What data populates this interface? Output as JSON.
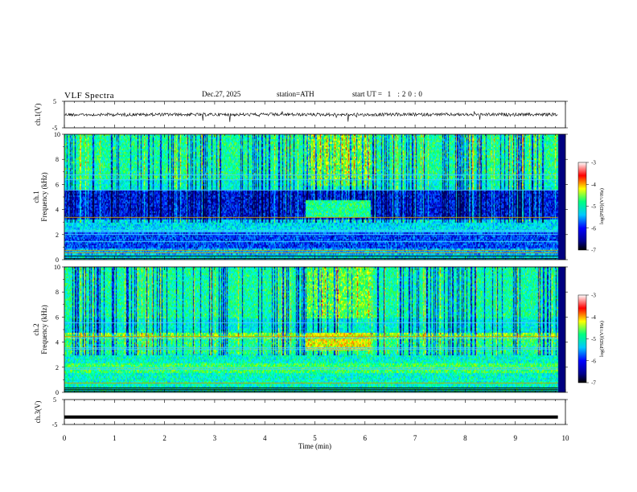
{
  "header": {
    "title": "VLF Spectra",
    "date": "Dec.27, 2025",
    "station": "station=ATH",
    "start_label": "start UT =",
    "start_time": "1 :20:0"
  },
  "chart_data": [
    {
      "type": "line",
      "id": "ch1-waveform",
      "ylabel": "ch.1(V)",
      "ylim": [
        -5,
        5
      ],
      "yticks": [
        "5",
        "-5"
      ],
      "baseline": 0,
      "x_range_min": [
        0,
        9.85
      ]
    },
    {
      "type": "heatmap",
      "id": "ch1-spectrogram",
      "ylabel": "ch.1 Frequency (kHz)",
      "ylim": [
        0,
        10
      ],
      "yticks": [
        "0",
        "2",
        "4",
        "6",
        "8",
        "10"
      ],
      "colorbar_label": "log(PSD)(V²/Hz)",
      "colorbar_range": [
        -7,
        -3
      ],
      "colorbar_ticks": [
        "-3",
        "-4",
        "-5",
        "-6",
        "-7"
      ],
      "features": [
        {
          "label": "enhanced band",
          "x_range": [
            4.8,
            6.1
          ],
          "y_range": [
            3.6,
            4.4
          ]
        }
      ]
    },
    {
      "type": "heatmap",
      "id": "ch2-spectrogram",
      "ylabel": "ch.2 Frequency (kHz)",
      "ylim": [
        0,
        10
      ],
      "yticks": [
        "0",
        "2",
        "4",
        "6",
        "8",
        "10"
      ],
      "colorbar_label": "log(PSD)(V²/Hz)",
      "colorbar_range": [
        -7,
        -3
      ],
      "colorbar_ticks": [
        "-3",
        "-4",
        "-5",
        "-6",
        "-7"
      ],
      "features": [
        {
          "label": "enhanced band",
          "x_range": [
            4.8,
            6.1
          ],
          "y_range": [
            3.6,
            4.2
          ]
        }
      ]
    },
    {
      "type": "line",
      "id": "ch3-waveform",
      "ylabel": "ch.3(V)",
      "ylim": [
        -5,
        5
      ],
      "yticks": [
        "5",
        "-5"
      ],
      "baseline": -2,
      "x_range_min": [
        0,
        9.85
      ]
    }
  ],
  "xaxis": {
    "label": "Time (min)",
    "ticks": [
      "0",
      "1",
      "2",
      "3",
      "4",
      "5",
      "6",
      "7",
      "8",
      "9",
      "10"
    ],
    "xlim": [
      0,
      10
    ]
  }
}
